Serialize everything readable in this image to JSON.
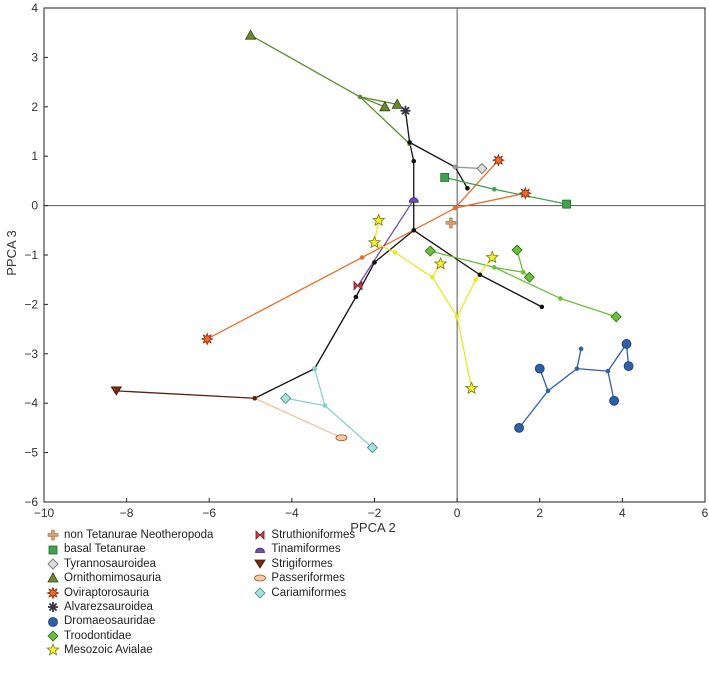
{
  "chart_data": {
    "type": "scatter",
    "xlabel": "PPCA 2",
    "ylabel": "PPCA 3",
    "xlim": [
      -10,
      6
    ],
    "ylim": [
      -6,
      4
    ],
    "xticks": [
      "−10",
      "−8",
      "−6",
      "−4",
      "−2",
      "0",
      "2",
      "4",
      "6"
    ],
    "yticks": [
      "−6",
      "−5",
      "−4",
      "−3",
      "−2",
      "−1",
      "0",
      "1",
      "2",
      "3",
      "4"
    ],
    "colors": {
      "backbone": "#111111",
      "ornithomimosauria": "#5e8a2e",
      "oviraptorosauria": "#ee6a2a",
      "basal_tetanurae": "#3fa34d",
      "troodontidae": "#6bbf3a",
      "avialae": "#e9e923",
      "dromaeosauridae": "#2e5fa8",
      "cariamiformes": "#88d3cf",
      "passeriformes": "#f4c29a",
      "strigiformes": "#5a1f10",
      "tinamiformes": "#7050b0",
      "tyrannosauroidea": "#999999"
    },
    "series": [
      {
        "name": "Ornithomimosauria lineage",
        "color_key": "ornithomimosauria",
        "points": [
          [
            -5.0,
            3.45
          ],
          [
            -2.35,
            2.2
          ],
          [
            -1.75,
            2.0
          ],
          [
            -1.45,
            2.05
          ],
          [
            -1.15,
            1.25
          ]
        ],
        "segments": [
          [
            0,
            1
          ],
          [
            1,
            2
          ],
          [
            1,
            3
          ],
          [
            1,
            4
          ]
        ]
      },
      {
        "name": "Main backbone",
        "color_key": "backbone",
        "points": [
          [
            -1.25,
            1.92
          ],
          [
            -1.15,
            1.28
          ],
          [
            -1.05,
            0.9
          ],
          [
            -1.05,
            -0.5
          ],
          [
            -2.0,
            -1.15
          ],
          [
            -2.45,
            -1.85
          ],
          [
            -3.45,
            -3.3
          ],
          [
            -4.9,
            -3.9
          ],
          [
            -0.05,
            0.78
          ],
          [
            0.25,
            0.35
          ],
          [
            0.55,
            -1.4
          ],
          [
            2.05,
            -2.05
          ]
        ],
        "segments": [
          [
            0,
            1
          ],
          [
            1,
            2
          ],
          [
            2,
            3
          ],
          [
            3,
            4
          ],
          [
            4,
            5
          ],
          [
            5,
            6
          ],
          [
            6,
            7
          ],
          [
            1,
            8
          ],
          [
            8,
            9
          ],
          [
            3,
            10
          ],
          [
            10,
            11
          ]
        ]
      },
      {
        "name": "Oviraptorosauria tree",
        "color_key": "oviraptorosauria",
        "points": [
          [
            -6.05,
            -2.7
          ],
          [
            -2.3,
            -1.05
          ],
          [
            -0.05,
            -0.05
          ],
          [
            1.0,
            0.92
          ],
          [
            1.65,
            0.25
          ]
        ],
        "segments": [
          [
            0,
            1
          ],
          [
            1,
            2
          ],
          [
            2,
            3
          ],
          [
            2,
            4
          ]
        ]
      },
      {
        "name": "basal Tetanurae links",
        "color_key": "basal_tetanurae",
        "points": [
          [
            -0.3,
            0.57
          ],
          [
            0.9,
            0.33
          ],
          [
            2.65,
            0.03
          ]
        ],
        "segments": [
          [
            0,
            1
          ],
          [
            1,
            2
          ]
        ]
      },
      {
        "name": "Tyrannosauroidea link",
        "color_key": "tyrannosauroidea",
        "points": [
          [
            -0.05,
            0.78
          ],
          [
            0.6,
            0.75
          ]
        ],
        "segments": [
          [
            0,
            1
          ]
        ]
      },
      {
        "name": "Tinamiformes link",
        "color_key": "tinamiformes",
        "points": [
          [
            -1.05,
            0.12
          ],
          [
            -2.4,
            -1.62
          ]
        ],
        "segments": [
          [
            0,
            1
          ]
        ]
      },
      {
        "name": "Troodontidae tree",
        "color_key": "troodontidae",
        "points": [
          [
            -0.65,
            -0.92
          ],
          [
            0.9,
            -1.25
          ],
          [
            1.45,
            -0.9
          ],
          [
            1.6,
            -1.35
          ],
          [
            1.75,
            -1.45
          ],
          [
            2.5,
            -1.88
          ],
          [
            3.85,
            -2.25
          ]
        ],
        "segments": [
          [
            0,
            1
          ],
          [
            1,
            3
          ],
          [
            3,
            2
          ],
          [
            3,
            4
          ],
          [
            1,
            5
          ],
          [
            5,
            6
          ]
        ]
      },
      {
        "name": "Mesozoic Avialae tree",
        "color_key": "avialae",
        "points": [
          [
            -1.9,
            -0.3
          ],
          [
            -2.0,
            -0.75
          ],
          [
            -1.5,
            -0.95
          ],
          [
            -0.6,
            -1.45
          ],
          [
            -0.4,
            -1.18
          ],
          [
            0.0,
            -2.25
          ],
          [
            0.45,
            -1.5
          ],
          [
            0.85,
            -1.05
          ],
          [
            0.35,
            -3.7
          ]
        ],
        "segments": [
          [
            0,
            1
          ],
          [
            1,
            2
          ],
          [
            2,
            3
          ],
          [
            3,
            4
          ],
          [
            3,
            5
          ],
          [
            5,
            6
          ],
          [
            6,
            7
          ],
          [
            5,
            8
          ]
        ]
      },
      {
        "name": "Dromaeosauridae tree",
        "color_key": "dromaeosauridae",
        "points": [
          [
            1.5,
            -4.5
          ],
          [
            2.2,
            -3.75
          ],
          [
            2.0,
            -3.3
          ],
          [
            2.9,
            -3.3
          ],
          [
            3.0,
            -2.9
          ],
          [
            3.65,
            -3.35
          ],
          [
            3.8,
            -3.95
          ],
          [
            4.1,
            -2.8
          ],
          [
            4.15,
            -3.25
          ]
        ],
        "segments": [
          [
            0,
            1
          ],
          [
            1,
            2
          ],
          [
            1,
            3
          ],
          [
            3,
            4
          ],
          [
            3,
            5
          ],
          [
            5,
            6
          ],
          [
            5,
            7
          ],
          [
            7,
            8
          ]
        ]
      },
      {
        "name": "Cariamiformes tree",
        "color_key": "cariamiformes",
        "points": [
          [
            -3.45,
            -3.3
          ],
          [
            -4.15,
            -3.9
          ],
          [
            -3.2,
            -4.05
          ],
          [
            -2.05,
            -4.9
          ]
        ],
        "segments": [
          [
            0,
            2
          ],
          [
            1,
            2
          ],
          [
            2,
            3
          ]
        ]
      },
      {
        "name": "Passeriformes link",
        "color_key": "passeriformes",
        "points": [
          [
            -4.9,
            -3.9
          ],
          [
            -2.8,
            -4.7
          ]
        ],
        "segments": [
          [
            0,
            1
          ]
        ]
      },
      {
        "name": "Strigiformes link",
        "color_key": "strigiformes",
        "points": [
          [
            -4.9,
            -3.9
          ],
          [
            -8.25,
            -3.75
          ]
        ],
        "segments": [
          [
            0,
            1
          ]
        ]
      }
    ],
    "groups": [
      {
        "name": "non Tetanurae Neotheropoda",
        "marker": "cross",
        "fill": "#d8a070",
        "stroke": "#a26030",
        "points": [
          [
            -0.15,
            -0.35
          ]
        ]
      },
      {
        "name": "basal Tetanurae",
        "marker": "square",
        "fill": "#3fa34d",
        "stroke": "#1f6a2a",
        "points": [
          [
            -0.3,
            0.57
          ],
          [
            2.65,
            0.03
          ]
        ]
      },
      {
        "name": "Tyrannosauroidea",
        "marker": "diamond",
        "fill": "#dcdcdc",
        "stroke": "#666666",
        "points": [
          [
            0.6,
            0.75
          ]
        ]
      },
      {
        "name": "Ornithomimosauria",
        "marker": "triangle",
        "fill": "#6d8a2b",
        "stroke": "#2f4612",
        "points": [
          [
            -5.0,
            3.45
          ],
          [
            -1.75,
            2.0
          ],
          [
            -1.45,
            2.05
          ]
        ]
      },
      {
        "name": "Oviraptorosauria",
        "marker": "star8",
        "fill": "#ee6a2a",
        "stroke": "#8a2a08",
        "points": [
          [
            -6.05,
            -2.7
          ],
          [
            1.0,
            0.92
          ],
          [
            1.65,
            0.25
          ]
        ]
      },
      {
        "name": "Alvarezsauroidea",
        "marker": "asterisk",
        "fill": "#333344",
        "stroke": "#333344",
        "points": [
          [
            -1.25,
            1.92
          ]
        ]
      },
      {
        "name": "Dromaeosauridae",
        "marker": "circle",
        "fill": "#2e5fa8",
        "stroke": "#1a3a70",
        "points": [
          [
            1.5,
            -4.5
          ],
          [
            2.0,
            -3.3
          ],
          [
            3.8,
            -3.95
          ],
          [
            4.1,
            -2.8
          ],
          [
            4.15,
            -3.25
          ]
        ]
      },
      {
        "name": "Troodontidae",
        "marker": "diamond",
        "fill": "#6bbf3a",
        "stroke": "#2d6a16",
        "points": [
          [
            -0.65,
            -0.92
          ],
          [
            1.45,
            -0.9
          ],
          [
            1.75,
            -1.45
          ],
          [
            3.85,
            -2.25
          ]
        ]
      },
      {
        "name": "Mesozoic Avialae",
        "marker": "star5",
        "fill": "#f3f034",
        "stroke": "#7a7a10",
        "points": [
          [
            -1.9,
            -0.3
          ],
          [
            -2.0,
            -0.75
          ],
          [
            -0.4,
            -1.18
          ],
          [
            0.85,
            -1.05
          ],
          [
            0.35,
            -3.7
          ]
        ]
      },
      {
        "name": "Struthioniformes",
        "marker": "bowtie",
        "fill": "#d04040",
        "stroke": "#6a1a1a",
        "points": [
          [
            -2.4,
            -1.62
          ]
        ]
      },
      {
        "name": "Tinamiformes",
        "marker": "semicircle",
        "fill": "#7050b0",
        "stroke": "#3a2470",
        "points": [
          [
            -1.05,
            0.12
          ]
        ]
      },
      {
        "name": "Strigiformes",
        "marker": "invtriangle",
        "fill": "#7a2a15",
        "stroke": "#3a1008",
        "points": [
          [
            -8.25,
            -3.75
          ]
        ]
      },
      {
        "name": "Passeriformes",
        "marker": "ellipse",
        "fill": "#f8c8a0",
        "stroke": "#9a5a2a",
        "points": [
          [
            -2.8,
            -4.7
          ]
        ]
      },
      {
        "name": "Cariamiformes",
        "marker": "diamond",
        "fill": "#a8e0dc",
        "stroke": "#3a8a86",
        "points": [
          [
            -4.15,
            -3.9
          ],
          [
            -2.05,
            -4.9
          ]
        ]
      }
    ],
    "legend": {
      "col1": [
        {
          "label": "non Tetanurae Neotheropoda",
          "marker": "cross",
          "fill": "#d8a070",
          "stroke": "#a26030"
        },
        {
          "label": "basal Tetanurae",
          "marker": "square",
          "fill": "#3fa34d",
          "stroke": "#1f6a2a"
        },
        {
          "label": "Tyrannosauroidea",
          "marker": "diamond",
          "fill": "#dcdcdc",
          "stroke": "#666666"
        },
        {
          "label": "Ornithomimosauria",
          "marker": "triangle",
          "fill": "#6d8a2b",
          "stroke": "#2f4612"
        },
        {
          "label": "Oviraptorosauria",
          "marker": "star8",
          "fill": "#ee6a2a",
          "stroke": "#8a2a08"
        },
        {
          "label": "Alvarezsauroidea",
          "marker": "asterisk",
          "fill": "#333344",
          "stroke": "#333344"
        },
        {
          "label": "Dromaeosauridae",
          "marker": "circle",
          "fill": "#2e5fa8",
          "stroke": "#1a3a70"
        },
        {
          "label": "Troodontidae",
          "marker": "diamond",
          "fill": "#6bbf3a",
          "stroke": "#2d6a16"
        },
        {
          "label": "Mesozoic Avialae",
          "marker": "star5",
          "fill": "#f3f034",
          "stroke": "#7a7a10"
        }
      ],
      "col2": [
        {
          "label": "Struthioniformes",
          "marker": "bowtie",
          "fill": "#d04040",
          "stroke": "#6a1a1a"
        },
        {
          "label": "Tinamiformes",
          "marker": "semicircle",
          "fill": "#7050b0",
          "stroke": "#3a2470"
        },
        {
          "label": "Strigiformes",
          "marker": "invtriangle",
          "fill": "#7a2a15",
          "stroke": "#3a1008"
        },
        {
          "label": "Passeriformes",
          "marker": "ellipse",
          "fill": "#f8c8a0",
          "stroke": "#9a5a2a"
        },
        {
          "label": "Cariamiformes",
          "marker": "diamond",
          "fill": "#a8e0dc",
          "stroke": "#3a8a86"
        }
      ]
    }
  }
}
